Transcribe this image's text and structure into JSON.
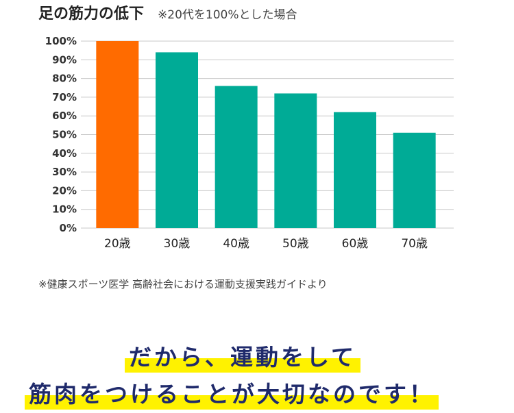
{
  "header": {
    "title": "足の筋力の低下",
    "subtitle": "※20代を100%とした場合"
  },
  "chart_data": {
    "type": "bar",
    "title": "足の筋力の低下",
    "subtitle": "※20代を100%とした場合",
    "categories": [
      "20歳",
      "30歳",
      "40歳",
      "50歳",
      "60歳",
      "70歳"
    ],
    "values": [
      100,
      94,
      76,
      72,
      62,
      51
    ],
    "ylim": [
      0,
      100
    ],
    "yticks": [
      "0%",
      "10%",
      "20%",
      "30%",
      "40%",
      "50%",
      "60%",
      "70%",
      "80%",
      "90%",
      "100%"
    ],
    "grid": true,
    "colors": [
      "#ff6b00",
      "#00ab96",
      "#00ab96",
      "#00ab96",
      "#00ab96",
      "#00ab96"
    ]
  },
  "source": "※健康スポーツ医学 高齢社会における運動支援実践ガイドより",
  "message": {
    "line1": "だから、運動をして",
    "line2": "筋肉をつけることが大切なのです！"
  }
}
